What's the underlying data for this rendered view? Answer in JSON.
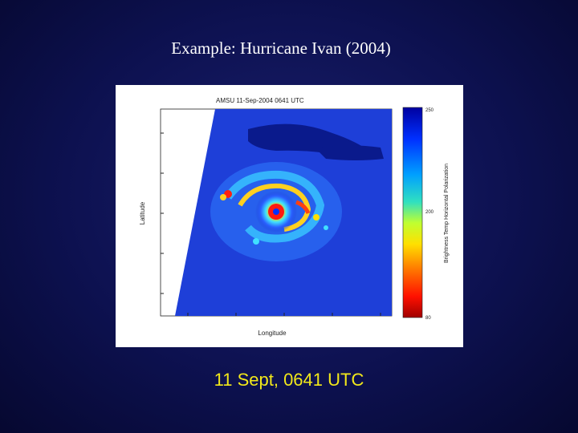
{
  "slide": {
    "title": "Example: Hurricane Ivan (2004)",
    "caption": "11 Sept, 0641 UTC"
  },
  "figure": {
    "plot_title": "AMSU 11-Sep-2004 0641 UTC",
    "xlabel": "Longitude",
    "ylabel": "Latitude",
    "colorbar_label": "Brightness Temp Horizontal Polarization",
    "colorbar_ticks": [
      "250",
      "200",
      "80"
    ],
    "colors": {
      "ocean": "#1e3fd8",
      "land": "#0a1a8c",
      "eye": "#ff2010",
      "rainband": "#ffd020"
    }
  }
}
